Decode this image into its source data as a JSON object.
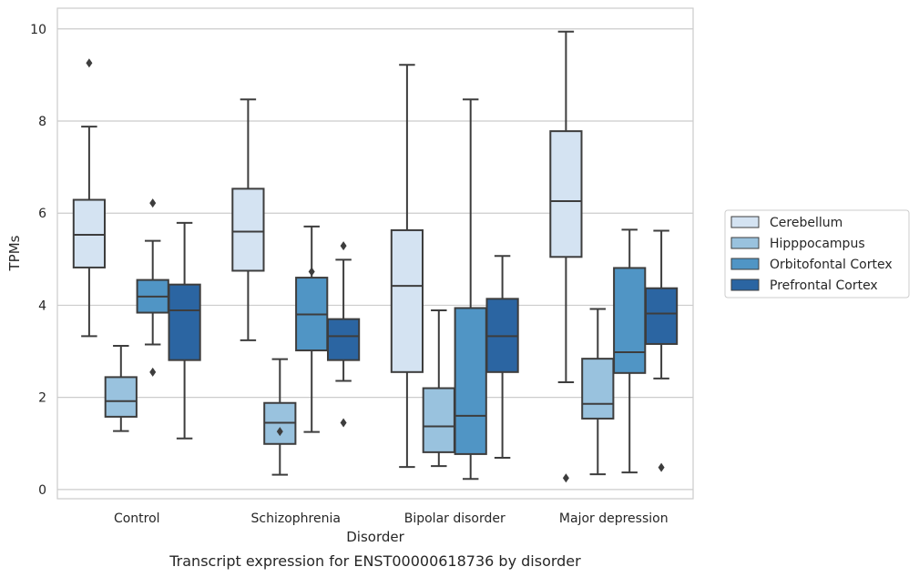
{
  "chart_data": {
    "type": "boxplot",
    "caption": "Transcript expression for ENST00000618736 by disorder",
    "xlabel": "Disorder",
    "ylabel": "TPMs",
    "ylim": [
      -0.2,
      10.45
    ],
    "yticks": [
      0,
      2,
      4,
      6,
      8,
      10
    ],
    "grid": "horizontal",
    "legend_position": "right",
    "categories": [
      "Control",
      "Schizophrenia",
      "Bipolar disorder",
      "Major depression"
    ],
    "series": [
      {
        "name": "Cerebellum",
        "color": "#d4e3f2",
        "boxes": [
          {
            "whisker_low": 3.33,
            "q1": 4.82,
            "median": 5.53,
            "q3": 6.29,
            "whisker_high": 7.88,
            "outliers": [
              9.26
            ]
          },
          {
            "whisker_low": 3.24,
            "q1": 4.75,
            "median": 5.6,
            "q3": 6.53,
            "whisker_high": 8.47,
            "outliers": []
          },
          {
            "whisker_low": 0.49,
            "q1": 2.55,
            "median": 4.42,
            "q3": 5.63,
            "whisker_high": 9.22,
            "outliers": []
          },
          {
            "whisker_low": 2.33,
            "q1": 5.05,
            "median": 6.26,
            "q3": 7.78,
            "whisker_high": 9.94,
            "outliers": [
              0.25
            ]
          }
        ]
      },
      {
        "name": "Hipppocampus",
        "color": "#99c2de",
        "boxes": [
          {
            "whisker_low": 1.27,
            "q1": 1.58,
            "median": 1.92,
            "q3": 2.44,
            "whisker_high": 3.12,
            "outliers": []
          },
          {
            "whisker_low": 0.32,
            "q1": 0.99,
            "median": 1.45,
            "q3": 1.88,
            "whisker_high": 2.83,
            "outliers": [
              1.26
            ]
          },
          {
            "whisker_low": 0.51,
            "q1": 0.81,
            "median": 1.37,
            "q3": 2.2,
            "whisker_high": 3.89,
            "outliers": []
          },
          {
            "whisker_low": 0.33,
            "q1": 1.54,
            "median": 1.86,
            "q3": 2.84,
            "whisker_high": 3.92,
            "outliers": []
          }
        ]
      },
      {
        "name": "Orbitofontal Cortex",
        "color": "#5095c5",
        "boxes": [
          {
            "whisker_low": 3.15,
            "q1": 3.84,
            "median": 4.19,
            "q3": 4.55,
            "whisker_high": 5.4,
            "outliers": [
              6.22,
              2.55
            ]
          },
          {
            "whisker_low": 1.25,
            "q1": 3.02,
            "median": 3.8,
            "q3": 4.6,
            "whisker_high": 5.71,
            "outliers": [
              4.73
            ]
          },
          {
            "whisker_low": 0.23,
            "q1": 0.77,
            "median": 1.6,
            "q3": 3.94,
            "whisker_high": 8.47,
            "outliers": []
          },
          {
            "whisker_low": 0.37,
            "q1": 2.53,
            "median": 2.98,
            "q3": 4.81,
            "whisker_high": 5.64,
            "outliers": []
          }
        ]
      },
      {
        "name": "Prefrontal Cortex",
        "color": "#2b65a2",
        "boxes": [
          {
            "whisker_low": 1.11,
            "q1": 2.81,
            "median": 3.89,
            "q3": 4.45,
            "whisker_high": 5.79,
            "outliers": []
          },
          {
            "whisker_low": 2.36,
            "q1": 2.81,
            "median": 3.33,
            "q3": 3.7,
            "whisker_high": 4.99,
            "outliers": [
              5.29,
              1.45
            ]
          },
          {
            "whisker_low": 0.69,
            "q1": 2.55,
            "median": 3.33,
            "q3": 4.14,
            "whisker_high": 5.07,
            "outliers": []
          },
          {
            "whisker_low": 2.41,
            "q1": 3.16,
            "median": 3.82,
            "q3": 4.37,
            "whisker_high": 5.62,
            "outliers": [
              0.48
            ]
          }
        ]
      }
    ]
  }
}
